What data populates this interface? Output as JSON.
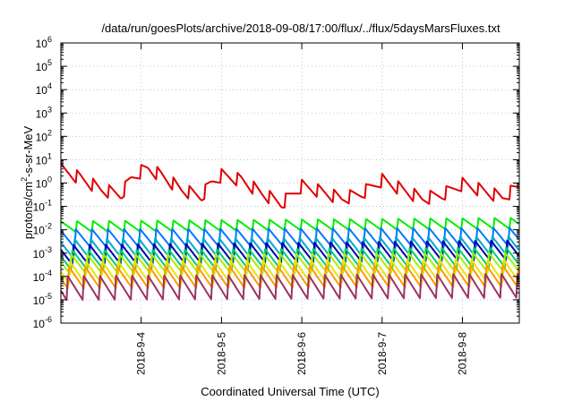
{
  "chart_data": {
    "type": "line",
    "title": "/data/run/goesPlots/archive/2018-09-08/17:00/flux/../flux/5daysMarsFluxes.txt",
    "xlabel": "Coordinated Universal Time (UTC)",
    "ylabel_parts": [
      "protons/cm",
      "2",
      "-s-sr-MeV"
    ],
    "x_range": [
      "2018-09-03T00:00",
      "2018-09-08T17:00"
    ],
    "x_ticks": [
      "2018-9-4",
      "2018-9-5",
      "2018-9-6",
      "2018-9-7",
      "2018-9-8"
    ],
    "x_tick_dates": [
      "2018-09-04",
      "2018-09-05",
      "2018-09-06",
      "2018-09-07",
      "2018-09-08"
    ],
    "y_scale": "log",
    "ylim": [
      1e-06,
      1000000.0
    ],
    "y_ticks": [
      {
        "base": "10",
        "exp": "-6"
      },
      {
        "base": "10",
        "exp": "-5"
      },
      {
        "base": "10",
        "exp": "-4"
      },
      {
        "base": "10",
        "exp": "-3"
      },
      {
        "base": "10",
        "exp": "-2"
      },
      {
        "base": "10",
        "exp": "-1"
      },
      {
        "base": "10",
        "exp": "0"
      },
      {
        "base": "10",
        "exp": "1"
      },
      {
        "base": "10",
        "exp": "2"
      },
      {
        "base": "10",
        "exp": "3"
      },
      {
        "base": "10",
        "exp": "4"
      },
      {
        "base": "10",
        "exp": "5"
      },
      {
        "base": "10",
        "exp": "6"
      }
    ],
    "grid": true,
    "sawtooth_cycles_per_day": 5,
    "series": [
      {
        "color": "#e00000",
        "x": [
          "2018-09-03T00:00",
          "2018-09-03T06:00",
          "2018-09-03T12:00",
          "2018-09-03T18:00",
          "2018-09-03T21:00",
          "2018-09-04T00:00",
          "2018-09-04T02:00",
          "2018-09-04T06:00",
          "2018-09-04T12:00",
          "2018-09-04T18:00",
          "2018-09-04T21:00",
          "2018-09-05T00:00",
          "2018-09-05T06:00",
          "2018-09-05T12:00",
          "2018-09-05T18:00",
          "2018-09-06T00:00",
          "2018-09-06T06:00",
          "2018-09-06T12:00",
          "2018-09-06T18:00",
          "2018-09-07T00:00",
          "2018-09-07T06:00",
          "2018-09-07T12:00",
          "2018-09-07T18:00",
          "2018-09-08T00:00",
          "2018-09-08T06:00",
          "2018-09-08T12:00",
          "2018-09-08T17:00"
        ],
        "y": [
          7,
          3,
          1,
          0.6,
          3,
          6,
          8,
          4,
          1,
          0.5,
          2,
          4,
          2.5,
          0.7,
          0.25,
          1.4,
          0.8,
          0.4,
          0.7,
          2.5,
          1,
          0.4,
          0.6,
          1.7,
          0.9,
          0.45,
          1.4
        ],
        "tooth_depth": 0.6
      },
      {
        "color": "#00ee00",
        "x": [
          "2018-09-03T00:00",
          "2018-09-08T17:00"
        ],
        "y": [
          0.025,
          0.035
        ],
        "tooth_depth": 0.5
      },
      {
        "color": "#0077ff",
        "x": [
          "2018-09-03T00:00",
          "2018-09-08T17:00"
        ],
        "y": [
          0.012,
          0.014
        ],
        "tooth_depth": 0.85
      },
      {
        "color": "#00aacc",
        "x": [
          "2018-09-03T00:00",
          "2018-09-08T17:00"
        ],
        "y": [
          0.0045,
          0.006
        ],
        "tooth_depth": 0.9
      },
      {
        "color": "#0000aa",
        "x": [
          "2018-09-03T00:00",
          "2018-09-08T17:00"
        ],
        "y": [
          0.0025,
          0.004
        ],
        "tooth_depth": 0.9
      },
      {
        "color": "#00cc77",
        "x": [
          "2018-09-03T00:00",
          "2018-09-08T17:00"
        ],
        "y": [
          0.0015,
          0.002
        ],
        "tooth_depth": 0.9
      },
      {
        "color": "#aaee00",
        "x": [
          "2018-09-03T00:00",
          "2018-09-08T17:00"
        ],
        "y": [
          0.001,
          0.0012
        ],
        "tooth_depth": 0.9
      },
      {
        "color": "#f0e000",
        "x": [
          "2018-09-03T00:00",
          "2018-09-08T17:00"
        ],
        "y": [
          0.0005,
          0.0006
        ],
        "tooth_depth": 1.0
      },
      {
        "color": "#ff9900",
        "x": [
          "2018-09-03T00:00",
          "2018-09-08T17:00"
        ],
        "y": [
          0.0003,
          0.00035
        ],
        "tooth_depth": 1.0
      },
      {
        "color": "#993366",
        "x": [
          "2018-09-03T00:00",
          "2018-09-08T17:00"
        ],
        "y": [
          0.00012,
          0.00015
        ],
        "tooth_depth": 1.1
      }
    ]
  }
}
